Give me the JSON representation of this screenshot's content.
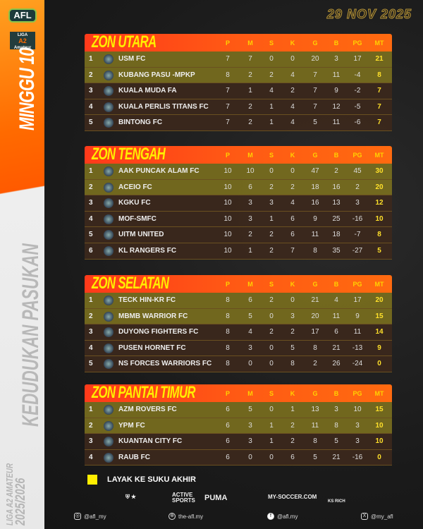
{
  "branding": {
    "logo": "AFL",
    "liga_logo": [
      "LIGA",
      "A2",
      "Amateur"
    ],
    "matchweek": "MINGGU 10",
    "title": "KEDUDUKAN PASUKAN",
    "league": "LIGA A2 AMATEUR",
    "season": "2025/2026"
  },
  "date": "29 NOV 2025",
  "columns": [
    "P",
    "M",
    "S",
    "K",
    "G",
    "B",
    "PG",
    "MT"
  ],
  "zones": [
    {
      "title": "ZON UTARA",
      "rows": [
        [
          "1",
          "USM FC",
          "7",
          "7",
          "0",
          "0",
          "20",
          "3",
          "17",
          "21"
        ],
        [
          "2",
          "KUBANG PASU -MPKP",
          "8",
          "2",
          "2",
          "4",
          "7",
          "11",
          "-4",
          "8"
        ],
        [
          "3",
          "KUALA MUDA FA",
          "7",
          "1",
          "4",
          "2",
          "7",
          "9",
          "-2",
          "7"
        ],
        [
          "4",
          "KUALA PERLIS TITANS FC",
          "7",
          "2",
          "1",
          "4",
          "7",
          "12",
          "-5",
          "7"
        ],
        [
          "5",
          "BINTONG FC",
          "7",
          "2",
          "1",
          "4",
          "5",
          "11",
          "-6",
          "7"
        ]
      ]
    },
    {
      "title": "ZON TENGAH",
      "rows": [
        [
          "1",
          "AAK PUNCAK ALAM FC",
          "10",
          "10",
          "0",
          "0",
          "47",
          "2",
          "45",
          "30"
        ],
        [
          "2",
          "ACEIO FC",
          "10",
          "6",
          "2",
          "2",
          "18",
          "16",
          "2",
          "20"
        ],
        [
          "3",
          "KGKU FC",
          "10",
          "3",
          "3",
          "4",
          "16",
          "13",
          "3",
          "12"
        ],
        [
          "4",
          "MOF-SMFC",
          "10",
          "3",
          "1",
          "6",
          "9",
          "25",
          "-16",
          "10"
        ],
        [
          "5",
          "UITM UNITED",
          "10",
          "2",
          "2",
          "6",
          "11",
          "18",
          "-7",
          "8"
        ],
        [
          "6",
          "KL RANGERS FC",
          "10",
          "1",
          "2",
          "7",
          "8",
          "35",
          "-27",
          "5"
        ]
      ]
    },
    {
      "title": "ZON SELATAN",
      "rows": [
        [
          "1",
          "TECK HIN-KR FC",
          "8",
          "6",
          "2",
          "0",
          "21",
          "4",
          "17",
          "20"
        ],
        [
          "2",
          "MBMB WARRIOR FC",
          "8",
          "5",
          "0",
          "3",
          "20",
          "11",
          "9",
          "15"
        ],
        [
          "3",
          "DUYONG FIGHTERS FC",
          "8",
          "4",
          "2",
          "2",
          "17",
          "6",
          "11",
          "14"
        ],
        [
          "4",
          "PUSEN HORNET FC",
          "8",
          "3",
          "0",
          "5",
          "8",
          "21",
          "-13",
          "9"
        ],
        [
          "5",
          "NS FORCES WARRIORS FC",
          "8",
          "0",
          "0",
          "8",
          "2",
          "26",
          "-24",
          "0"
        ]
      ]
    },
    {
      "title": "ZON PANTAI TIMUR",
      "rows": [
        [
          "1",
          "AZM ROVERS FC",
          "6",
          "5",
          "0",
          "1",
          "13",
          "3",
          "10",
          "15"
        ],
        [
          "2",
          "YPM FC",
          "6",
          "3",
          "1",
          "2",
          "11",
          "8",
          "3",
          "10"
        ],
        [
          "3",
          "KUANTAN CITY FC",
          "6",
          "3",
          "1",
          "2",
          "8",
          "5",
          "3",
          "10"
        ],
        [
          "4",
          "RAUB FC",
          "6",
          "0",
          "0",
          "6",
          "5",
          "21",
          "-16",
          "0"
        ]
      ]
    }
  ],
  "qualified_rows_per_zone": 2,
  "colors": {
    "qualified": "#ffee00",
    "header": "#ff4a14",
    "title": "#ffee00"
  },
  "legend": "LAYAK KE SUKU AKHIR",
  "sponsors": [
    "ACTIVE SPORTS",
    "PUMA",
    "MY-SOCCER.COM",
    "KS RICH"
  ],
  "socials": [
    {
      "icon": "instagram-icon",
      "label": "@afl_my"
    },
    {
      "icon": "globe-icon",
      "label": "the-afl.my"
    },
    {
      "icon": "facebook-icon",
      "label": "@afl.my"
    },
    {
      "icon": "x-icon",
      "label": "@my_afl"
    }
  ]
}
